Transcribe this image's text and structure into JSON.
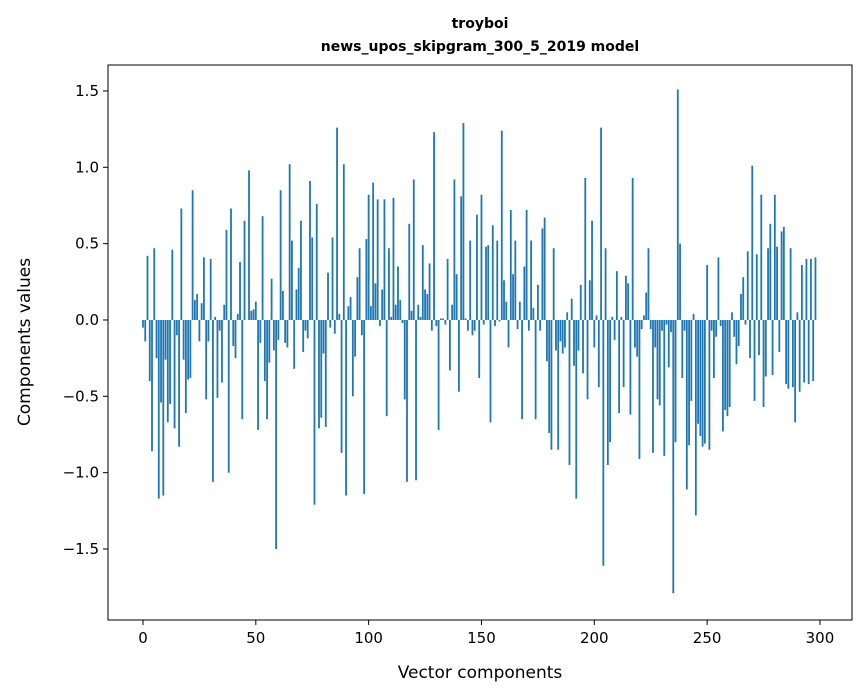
{
  "chart_data": {
    "type": "bar",
    "title_line1": "troyboi",
    "title_line2": "news_upos_skipgram_300_5_2019 model",
    "xlabel": "Vector components",
    "ylabel": "Components values",
    "xlim": [
      -15.5,
      314.2
    ],
    "ylim": [
      -1.965,
      1.67
    ],
    "xticks": [
      0,
      50,
      100,
      150,
      200,
      250,
      300
    ],
    "xtick_labels": [
      "0",
      "50",
      "100",
      "150",
      "200",
      "250",
      "300"
    ],
    "yticks": [
      -1.5,
      -1.0,
      -0.5,
      0.0,
      0.5,
      1.0,
      1.5
    ],
    "ytick_labels": [
      "−1.5",
      "−1.0",
      "−0.5",
      "0.0",
      "0.5",
      "1.0",
      "1.5"
    ],
    "grid": false,
    "bar_color": "#1f77b4",
    "values": [
      -0.05,
      -0.14,
      0.42,
      -0.4,
      -0.86,
      0.47,
      -0.25,
      -1.17,
      -0.54,
      -1.15,
      -0.26,
      -0.67,
      -0.55,
      0.46,
      -0.71,
      -0.1,
      -0.83,
      0.73,
      -0.26,
      -0.61,
      -0.39,
      -0.38,
      0.85,
      0.13,
      0.17,
      -0.14,
      0.11,
      0.41,
      -0.52,
      -0.14,
      0.4,
      -1.06,
      0.02,
      -0.51,
      -0.07,
      -0.41,
      0.1,
      0.59,
      -1.0,
      0.73,
      -0.17,
      -0.25,
      0.04,
      0.38,
      -0.65,
      0.65,
      0.0,
      0.98,
      0.06,
      0.07,
      0.12,
      -0.72,
      -0.15,
      0.68,
      -0.4,
      -0.65,
      -0.28,
      0.27,
      -0.2,
      -1.5,
      -0.13,
      0.85,
      0.19,
      -0.15,
      -0.18,
      1.02,
      0.52,
      -0.32,
      0.2,
      0.34,
      0.65,
      -0.21,
      -0.07,
      -0.12,
      0.91,
      0.54,
      -1.21,
      0.76,
      -0.71,
      -0.64,
      -0.22,
      -0.7,
      0.31,
      -0.05,
      0.54,
      -0.09,
      1.26,
      0.04,
      -0.87,
      1.02,
      -1.15,
      0.09,
      0.15,
      -0.5,
      -0.24,
      0.28,
      0.47,
      -0.1,
      -1.14,
      0.53,
      0.82,
      0.09,
      0.9,
      0.24,
      0.79,
      -0.04,
      0.2,
      0.79,
      -0.63,
      0.47,
      0.02,
      0.8,
      0.1,
      0.35,
      0.13,
      -0.02,
      -0.52,
      -1.06,
      0.63,
      0.06,
      0.92,
      -1.05,
      0.1,
      0.02,
      0.49,
      0.2,
      0.17,
      0.37,
      -0.07,
      1.23,
      -0.04,
      -0.72,
      0.01,
      0.01,
      -0.03,
      0.4,
      -0.33,
      0.1,
      0.92,
      0.3,
      -0.47,
      0.81,
      1.29,
      0.01,
      -0.07,
      0.52,
      -0.1,
      -0.07,
      0.69,
      -0.38,
      0.82,
      -0.03,
      0.48,
      0.49,
      -0.67,
      0.62,
      -0.04,
      0.52,
      -0.01,
      1.24,
      0.26,
      0.12,
      -0.18,
      0.72,
      0.3,
      0.52,
      -0.06,
      0.12,
      -0.65,
      0.35,
      0.72,
      -0.07,
      0.52,
      0.08,
      -0.65,
      0.23,
      -0.07,
      0.6,
      0.67,
      -0.27,
      -0.74,
      -0.85,
      0.47,
      -0.2,
      -0.85,
      -0.14,
      -0.22,
      -0.18,
      0.05,
      -0.95,
      0.14,
      -0.3,
      -1.17,
      -0.2,
      0.23,
      -0.35,
      0.93,
      -0.52,
      0.26,
      0.65,
      -0.18,
      0.03,
      -0.44,
      1.26,
      -1.61,
      0.47,
      -0.95,
      -0.8,
      0.02,
      -0.13,
      0.32,
      -0.61,
      0.02,
      -0.44,
      0.29,
      0.24,
      -0.62,
      0.93,
      -0.18,
      -0.24,
      -0.91,
      -0.06,
      0.03,
      0.18,
      0.47,
      -0.06,
      -0.87,
      -0.18,
      -0.52,
      -0.56,
      -0.07,
      -0.89,
      -0.03,
      -0.31,
      -0.08,
      -1.79,
      -0.8,
      1.51,
      0.5,
      -0.38,
      -0.07,
      -1.11,
      -0.82,
      -0.53,
      0.04,
      -1.28,
      -0.68,
      -0.76,
      -0.83,
      -0.81,
      0.36,
      -0.85,
      -0.07,
      -0.38,
      -0.11,
      0.41,
      -0.04,
      -0.73,
      -0.59,
      -0.63,
      -0.57,
      0.05,
      -0.11,
      -0.29,
      -0.17,
      0.17,
      0.28,
      -0.03,
      0.45,
      -0.25,
      1.01,
      -0.53,
      0.43,
      -0.23,
      0.82,
      -0.57,
      -0.37,
      0.47,
      0.63,
      -0.36,
      0.82,
      0.48,
      -0.21,
      0.58,
      0.61,
      -0.42,
      -0.45,
      0.47,
      -0.44,
      -0.67,
      0.05,
      -0.47,
      0.36,
      -0.41,
      0.4,
      -0.42,
      0.4,
      -0.4,
      0.41,
      0.0
    ]
  }
}
